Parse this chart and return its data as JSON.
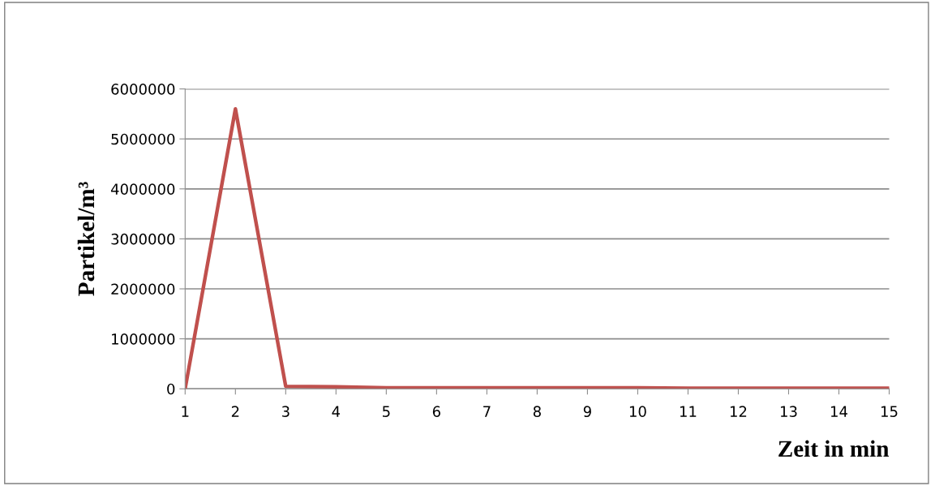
{
  "chart_data": {
    "type": "line",
    "xlabel": "Zeit in min",
    "ylabel": "Partikel/m³",
    "x": [
      1,
      2,
      3,
      4,
      5,
      6,
      7,
      8,
      9,
      10,
      11,
      12,
      13,
      14,
      15
    ],
    "series": [
      {
        "color": "#c0504d",
        "values": [
          0,
          5600000,
          50000,
          40000,
          20000,
          20000,
          20000,
          20000,
          20000,
          20000,
          10000,
          10000,
          10000,
          10000,
          10000
        ]
      }
    ],
    "xlim": [
      1,
      15
    ],
    "xticks": [
      1,
      2,
      3,
      4,
      5,
      6,
      7,
      8,
      9,
      10,
      11,
      12,
      13,
      14,
      15
    ],
    "ylim": [
      0,
      6000000
    ],
    "yticks": [
      0,
      1000000,
      2000000,
      3000000,
      4000000,
      5000000,
      6000000
    ],
    "grid": "y",
    "legend": false,
    "marker": "none",
    "line_style": "solid"
  }
}
